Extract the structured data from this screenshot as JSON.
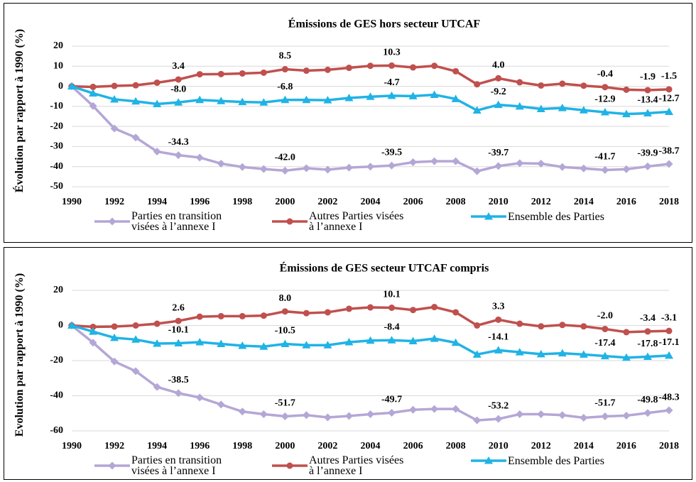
{
  "chart_data": [
    {
      "type": "line",
      "title": "Émissions de GES hors secteur UTCAF",
      "y_label": "Évolution par rapport à 1990 (%)",
      "x": [
        1990,
        1991,
        1992,
        1993,
        1994,
        1995,
        1996,
        1997,
        1998,
        1999,
        2000,
        2001,
        2002,
        2003,
        2004,
        2005,
        2006,
        2007,
        2008,
        2009,
        2010,
        2011,
        2012,
        2013,
        2014,
        2015,
        2016,
        2017,
        2018
      ],
      "xlim": [
        1990,
        2018
      ],
      "xticks": [
        1990,
        1992,
        1994,
        1996,
        1998,
        2000,
        2002,
        2004,
        2006,
        2008,
        2010,
        2012,
        2014,
        2016,
        2018
      ],
      "ylim": [
        -50,
        20
      ],
      "yticks": [
        -50,
        -40,
        -30,
        -20,
        -10,
        0,
        10,
        20
      ],
      "grid": true,
      "legend": "bottom",
      "series": [
        {
          "name": "Parties en transition visées à l’annexe I",
          "color": "#b4a7d6",
          "marker": "diamond",
          "values": [
            0,
            -9.8,
            -21,
            -25.5,
            -32.5,
            -34.3,
            -35.5,
            -38.5,
            -40.2,
            -41.2,
            -42.0,
            -40.8,
            -41.5,
            -40.5,
            -40.0,
            -39.5,
            -37.8,
            -37.3,
            -37.3,
            -42.3,
            -39.7,
            -38.3,
            -38.5,
            -40.2,
            -40.9,
            -41.7,
            -41.3,
            -39.9,
            -38.7
          ],
          "value_labels": [
            null,
            null,
            null,
            null,
            null,
            "-34.3",
            null,
            null,
            null,
            null,
            "-42.0",
            null,
            null,
            null,
            null,
            "-39.5",
            null,
            null,
            null,
            null,
            "-39.7",
            null,
            null,
            null,
            null,
            "-41.7",
            null,
            "-39.9",
            "-38.7"
          ]
        },
        {
          "name": "Autres Parties visées à l’annexe I",
          "color": "#c0504d",
          "marker": "circle",
          "values": [
            0,
            -0.3,
            0.2,
            0.5,
            1.8,
            3.4,
            6.0,
            6.1,
            6.4,
            6.8,
            8.5,
            7.8,
            8.2,
            9.2,
            10.2,
            10.3,
            9.4,
            10.2,
            7.5,
            1.0,
            4.0,
            2.0,
            0.4,
            1.3,
            0.3,
            -0.4,
            -1.7,
            -1.9,
            -1.5
          ],
          "value_labels": [
            null,
            null,
            null,
            null,
            null,
            "3.4",
            null,
            null,
            null,
            null,
            "8.5",
            null,
            null,
            null,
            null,
            "10.3",
            null,
            null,
            null,
            null,
            "4.0",
            null,
            null,
            null,
            null,
            "-0.4",
            null,
            "-1.9",
            "-1.5"
          ]
        },
        {
          "name": "Ensemble des  Parties",
          "color": "#1fb3e6",
          "marker": "triangle",
          "values": [
            0,
            -3.5,
            -6.5,
            -7.5,
            -8.8,
            -8.0,
            -6.8,
            -7.3,
            -7.8,
            -8.0,
            -6.8,
            -6.8,
            -6.9,
            -5.8,
            -5.2,
            -4.7,
            -4.9,
            -4.2,
            -6.3,
            -12.0,
            -9.2,
            -10.0,
            -11.3,
            -10.8,
            -11.9,
            -12.9,
            -13.8,
            -13.4,
            -12.7
          ],
          "value_labels": [
            null,
            null,
            null,
            null,
            null,
            "-8.0",
            null,
            null,
            null,
            null,
            "-6.8",
            null,
            null,
            null,
            null,
            "-4.7",
            null,
            null,
            null,
            null,
            "-9.2",
            null,
            null,
            null,
            null,
            "-12.9",
            null,
            "-13.4",
            "-12.7"
          ]
        }
      ]
    },
    {
      "type": "line",
      "title": "Émissions de GES secteur UTCAF compris",
      "y_label": "Evolution par rapport à 1990 (%)",
      "x": [
        1990,
        1991,
        1992,
        1993,
        1994,
        1995,
        1996,
        1997,
        1998,
        1999,
        2000,
        2001,
        2002,
        2003,
        2004,
        2005,
        2006,
        2007,
        2008,
        2009,
        2010,
        2011,
        2012,
        2013,
        2014,
        2015,
        2016,
        2017,
        2018
      ],
      "xlim": [
        1990,
        2018
      ],
      "xticks": [
        1990,
        1992,
        1994,
        1996,
        1998,
        2000,
        2002,
        2004,
        2006,
        2008,
        2010,
        2012,
        2014,
        2016,
        2018
      ],
      "ylim": [
        -60,
        20
      ],
      "yticks": [
        -60,
        -40,
        -20,
        0,
        20
      ],
      "grid": true,
      "legend": "bottom",
      "series": [
        {
          "name": "Parties en transition visées à l’annexe I",
          "color": "#b4a7d6",
          "marker": "diamond",
          "values": [
            0,
            -9.8,
            -20.5,
            -26,
            -35,
            -38.5,
            -41,
            -45,
            -49,
            -50.5,
            -51.7,
            -51,
            -52.3,
            -51.5,
            -50.5,
            -49.7,
            -48,
            -47.5,
            -47.5,
            -54,
            -53.2,
            -50.5,
            -50.5,
            -51,
            -52.5,
            -51.7,
            -51.3,
            -49.8,
            -48.3
          ],
          "value_labels": [
            null,
            null,
            null,
            null,
            null,
            "-38.5",
            null,
            null,
            null,
            null,
            "-51.7",
            null,
            null,
            null,
            null,
            "-49.7",
            null,
            null,
            null,
            null,
            "-53.2",
            null,
            null,
            null,
            null,
            "-51.7",
            null,
            "-49.8",
            "-48.3"
          ]
        },
        {
          "name": "Autres Parties visées à l’annexe I",
          "color": "#c0504d",
          "marker": "circle",
          "values": [
            0,
            -0.8,
            -0.6,
            0,
            1,
            2.6,
            5,
            5.3,
            5.3,
            5.6,
            8.0,
            7,
            7.5,
            9.5,
            10.3,
            10.1,
            8.8,
            10.5,
            7.5,
            0,
            3.3,
            1,
            -0.5,
            0.3,
            -0.5,
            -2.0,
            -3.8,
            -3.4,
            -3.1
          ],
          "value_labels": [
            null,
            null,
            null,
            null,
            null,
            "2.6",
            null,
            null,
            null,
            null,
            "8.0",
            null,
            null,
            null,
            null,
            "10.1",
            null,
            null,
            null,
            null,
            "3.3",
            null,
            null,
            null,
            null,
            "-2.0",
            null,
            "-3.4",
            "-3.1"
          ]
        },
        {
          "name": "Ensemble des  Parties",
          "color": "#1fb3e6",
          "marker": "triangle",
          "values": [
            0,
            -3.5,
            -7,
            -8,
            -10.3,
            -10.1,
            -9.5,
            -10.5,
            -11.5,
            -12,
            -10.5,
            -11.2,
            -11.2,
            -9.5,
            -8.6,
            -8.4,
            -8.9,
            -7.5,
            -9.8,
            -16.5,
            -14.1,
            -15.2,
            -16.3,
            -15.8,
            -16.5,
            -17.4,
            -18.3,
            -17.8,
            -17.1
          ],
          "value_labels": [
            null,
            null,
            null,
            null,
            null,
            "-10.1",
            null,
            null,
            null,
            null,
            "-10.5",
            null,
            null,
            null,
            null,
            "-8.4",
            null,
            null,
            null,
            null,
            "-14.1",
            null,
            null,
            null,
            null,
            "-17.4",
            null,
            "-17.8",
            "-17.1"
          ]
        }
      ]
    }
  ]
}
